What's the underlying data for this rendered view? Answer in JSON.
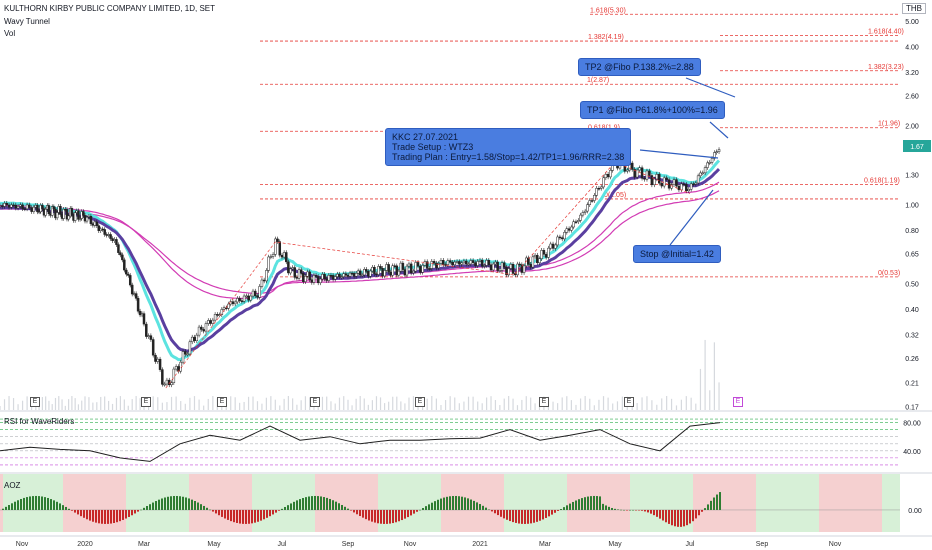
{
  "header": {
    "title": "KULTHORN KIRBY PUBLIC COMPANY LIMITED, 1D, SET",
    "indicator1": "Wavy Tunnel",
    "indicator2": "Vol",
    "currency": "THB"
  },
  "panes": {
    "rsi_label": "RSI for WaveRiders",
    "aoz_label": "AOZ"
  },
  "callouts": {
    "tp2": "TP2 @Fibo P.138.2%=2.88",
    "tp1": "TP1 @Fibo P61.8%+100%=1.96",
    "plan": "KKC 27.07.2021\nTrade Setup : WTZ3\nTrading Plan : Entry=1.58/Stop=1.42/TP1=1.96/RRR=2.38",
    "stop": "Stop @Initial=1.42"
  },
  "earnings_marker": "E",
  "colors": {
    "up": "#26a69a",
    "down": "#ef5350",
    "tunnel_fast": "#5ce3e0",
    "tunnel_slow": "#5a3fa0",
    "ma_long": "#d23cb4",
    "fib": "#e53935",
    "callout": "#4a7de0",
    "rsi": "#1f1f1f"
  },
  "chart_data": {
    "type": "candlestick",
    "title": "KULTHORN KIRBY PUBLIC COMPANY LIMITED, 1D, SET",
    "y_scale": "log",
    "ylim": [
      0.165,
      5.6
    ],
    "price_ticks": [
      5.0,
      4.0,
      3.2,
      2.6,
      2.0,
      1.67,
      1.3,
      1.0,
      0.8,
      0.65,
      0.5,
      0.4,
      0.32,
      0.26,
      0.21,
      0.17
    ],
    "x_tick_labels": [
      "Nov",
      "2020",
      "Mar",
      "May",
      "Jul",
      "Sep",
      "Nov",
      "2021",
      "Mar",
      "May",
      "Jul",
      "Sep",
      "Nov"
    ],
    "price_path": [
      {
        "x": "2019-10-01",
        "close": 1.0
      },
      {
        "x": "2019-11-15",
        "close": 0.95
      },
      {
        "x": "2020-01-01",
        "close": 0.9
      },
      {
        "x": "2020-02-01",
        "close": 0.72
      },
      {
        "x": "2020-03-01",
        "close": 0.35
      },
      {
        "x": "2020-03-20",
        "close": 0.2
      },
      {
        "x": "2020-04-15",
        "close": 0.32
      },
      {
        "x": "2020-05-15",
        "close": 0.42
      },
      {
        "x": "2020-06-10",
        "close": 0.46
      },
      {
        "x": "2020-06-25",
        "close": 0.72
      },
      {
        "x": "2020-07-10",
        "close": 0.55
      },
      {
        "x": "2020-08-01",
        "close": 0.52
      },
      {
        "x": "2020-09-01",
        "close": 0.54
      },
      {
        "x": "2020-10-01",
        "close": 0.56
      },
      {
        "x": "2020-11-01",
        "close": 0.57
      },
      {
        "x": "2020-12-01",
        "close": 0.6
      },
      {
        "x": "2021-01-01",
        "close": 0.6
      },
      {
        "x": "2021-02-01",
        "close": 0.56
      },
      {
        "x": "2021-03-01",
        "close": 0.65
      },
      {
        "x": "2021-04-01",
        "close": 0.9
      },
      {
        "x": "2021-05-01",
        "close": 1.45
      },
      {
        "x": "2021-06-01",
        "close": 1.25
      },
      {
        "x": "2021-07-01",
        "close": 1.15
      },
      {
        "x": "2021-07-15",
        "close": 1.4
      },
      {
        "x": "2021-07-27",
        "close": 1.67
      }
    ],
    "current_price": 1.67,
    "fib_levels": [
      {
        "label": "1.618(5.30)",
        "value": 5.3
      },
      {
        "label": "1.618(4.40)",
        "value": 4.4
      },
      {
        "label": "1.382(4.19)",
        "value": 4.19
      },
      {
        "label": "1.382(3.23)",
        "value": 3.23
      },
      {
        "label": "1(2.87)",
        "value": 2.87
      },
      {
        "label": "0.618(1.9)",
        "value": 1.9
      },
      {
        "label": "1(1.96)",
        "value": 1.96
      },
      {
        "label": "0.618(1.19)",
        "value": 1.19
      },
      {
        "label": "0(1.05)",
        "value": 1.05
      },
      {
        "label": "0(0.53)",
        "value": 0.53
      }
    ],
    "rsi": {
      "levels": [
        80.0,
        40.0
      ],
      "path": [
        40,
        45,
        42,
        40,
        30,
        25,
        50,
        62,
        55,
        75,
        55,
        60,
        50,
        55,
        55,
        57,
        58,
        70,
        55,
        62,
        70,
        50,
        40,
        75,
        80
      ]
    },
    "aoz": {
      "zero_label": "0.00"
    }
  }
}
